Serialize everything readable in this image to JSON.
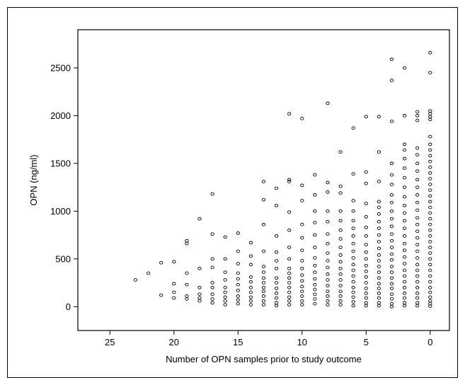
{
  "chart_data": {
    "type": "scatter",
    "title": "",
    "xlabel": "Number of OPN samples prior to study outcome",
    "ylabel": "OPN (ng/ml)",
    "xlim": [
      27.5,
      -1.5
    ],
    "ylim": [
      -250,
      2900
    ],
    "x_reversed": true,
    "grid": false,
    "legend": "none",
    "marker": "open-circle",
    "color": "#000000",
    "x_ticks": [
      {
        "value": 25,
        "label": "25"
      },
      {
        "value": 20,
        "label": "20"
      },
      {
        "value": 15,
        "label": "15"
      },
      {
        "value": 10,
        "label": "10"
      },
      {
        "value": 5,
        "label": "5"
      },
      {
        "value": 0,
        "label": "0"
      }
    ],
    "y_ticks": [
      {
        "value": 0,
        "label": "0"
      },
      {
        "value": 500,
        "label": "500"
      },
      {
        "value": 1000,
        "label": "1000"
      },
      {
        "value": 1500,
        "label": "1500"
      },
      {
        "value": 2000,
        "label": "2000"
      },
      {
        "value": 2500,
        "label": "2500"
      }
    ],
    "points": [
      [
        23,
        280
      ],
      [
        22,
        350
      ],
      [
        21,
        460
      ],
      [
        21,
        120
      ],
      [
        20,
        470
      ],
      [
        20,
        240
      ],
      [
        20,
        150
      ],
      [
        20,
        90
      ],
      [
        19,
        690
      ],
      [
        19,
        660
      ],
      [
        19,
        350
      ],
      [
        19,
        230
      ],
      [
        19,
        110
      ],
      [
        19,
        80
      ],
      [
        18,
        920
      ],
      [
        18,
        400
      ],
      [
        18,
        200
      ],
      [
        18,
        130
      ],
      [
        18,
        90
      ],
      [
        18,
        60
      ],
      [
        17,
        1180
      ],
      [
        17,
        760
      ],
      [
        17,
        500
      ],
      [
        17,
        410
      ],
      [
        17,
        250
      ],
      [
        17,
        200
      ],
      [
        17,
        130
      ],
      [
        17,
        80
      ],
      [
        17,
        40
      ],
      [
        16,
        730
      ],
      [
        16,
        500
      ],
      [
        16,
        360
      ],
      [
        16,
        280
      ],
      [
        16,
        200
      ],
      [
        16,
        150
      ],
      [
        16,
        100
      ],
      [
        16,
        60
      ],
      [
        16,
        20
      ],
      [
        15,
        770
      ],
      [
        15,
        580
      ],
      [
        15,
        450
      ],
      [
        15,
        350
      ],
      [
        15,
        290
      ],
      [
        15,
        230
      ],
      [
        15,
        170
      ],
      [
        15,
        110
      ],
      [
        15,
        70
      ],
      [
        15,
        30
      ],
      [
        14,
        670
      ],
      [
        14,
        530
      ],
      [
        14,
        440
      ],
      [
        14,
        310
      ],
      [
        14,
        260
      ],
      [
        14,
        200
      ],
      [
        14,
        150
      ],
      [
        14,
        100
      ],
      [
        14,
        60
      ],
      [
        14,
        20
      ],
      [
        13,
        1310
      ],
      [
        13,
        1120
      ],
      [
        13,
        860
      ],
      [
        13,
        580
      ],
      [
        13,
        420
      ],
      [
        13,
        360
      ],
      [
        13,
        300
      ],
      [
        13,
        250
      ],
      [
        13,
        200
      ],
      [
        13,
        160
      ],
      [
        13,
        110
      ],
      [
        13,
        60
      ],
      [
        13,
        20
      ],
      [
        12,
        1240
      ],
      [
        12,
        1060
      ],
      [
        12,
        740
      ],
      [
        12,
        570
      ],
      [
        12,
        480
      ],
      [
        12,
        400
      ],
      [
        12,
        300
      ],
      [
        12,
        250
      ],
      [
        12,
        190
      ],
      [
        12,
        140
      ],
      [
        12,
        90
      ],
      [
        12,
        40
      ],
      [
        12,
        10
      ],
      [
        11,
        2020
      ],
      [
        11,
        1330
      ],
      [
        11,
        1310
      ],
      [
        11,
        990
      ],
      [
        11,
        800
      ],
      [
        11,
        620
      ],
      [
        11,
        500
      ],
      [
        11,
        400
      ],
      [
        11,
        350
      ],
      [
        11,
        300
      ],
      [
        11,
        250
      ],
      [
        11,
        200
      ],
      [
        11,
        150
      ],
      [
        11,
        100
      ],
      [
        11,
        60
      ],
      [
        11,
        20
      ],
      [
        10,
        1970
      ],
      [
        10,
        1270
      ],
      [
        10,
        1110
      ],
      [
        10,
        860
      ],
      [
        10,
        720
      ],
      [
        10,
        590
      ],
      [
        10,
        480
      ],
      [
        10,
        400
      ],
      [
        10,
        330
      ],
      [
        10,
        270
      ],
      [
        10,
        210
      ],
      [
        10,
        160
      ],
      [
        10,
        110
      ],
      [
        10,
        60
      ],
      [
        10,
        20
      ],
      [
        9,
        1380
      ],
      [
        9,
        1170
      ],
      [
        9,
        1000
      ],
      [
        9,
        880
      ],
      [
        9,
        750
      ],
      [
        9,
        620
      ],
      [
        9,
        510
      ],
      [
        9,
        430
      ],
      [
        9,
        360
      ],
      [
        9,
        290
      ],
      [
        9,
        230
      ],
      [
        9,
        180
      ],
      [
        9,
        130
      ],
      [
        9,
        80
      ],
      [
        9,
        30
      ],
      [
        8,
        2130
      ],
      [
        8,
        1300
      ],
      [
        8,
        1200
      ],
      [
        8,
        1000
      ],
      [
        8,
        890
      ],
      [
        8,
        760
      ],
      [
        8,
        660
      ],
      [
        8,
        560
      ],
      [
        8,
        480
      ],
      [
        8,
        410
      ],
      [
        8,
        340
      ],
      [
        8,
        280
      ],
      [
        8,
        220
      ],
      [
        8,
        160
      ],
      [
        8,
        110
      ],
      [
        8,
        60
      ],
      [
        8,
        20
      ],
      [
        7,
        1620
      ],
      [
        7,
        1260
      ],
      [
        7,
        1190
      ],
      [
        7,
        1000
      ],
      [
        7,
        900
      ],
      [
        7,
        800
      ],
      [
        7,
        710
      ],
      [
        7,
        620
      ],
      [
        7,
        540
      ],
      [
        7,
        470
      ],
      [
        7,
        400
      ],
      [
        7,
        340
      ],
      [
        7,
        280
      ],
      [
        7,
        220
      ],
      [
        7,
        160
      ],
      [
        7,
        110
      ],
      [
        7,
        60
      ],
      [
        7,
        20
      ],
      [
        6,
        1870
      ],
      [
        6,
        1390
      ],
      [
        6,
        1110
      ],
      [
        6,
        1000
      ],
      [
        6,
        900
      ],
      [
        6,
        820
      ],
      [
        6,
        740
      ],
      [
        6,
        660
      ],
      [
        6,
        580
      ],
      [
        6,
        510
      ],
      [
        6,
        440
      ],
      [
        6,
        380
      ],
      [
        6,
        320
      ],
      [
        6,
        260
      ],
      [
        6,
        200
      ],
      [
        6,
        150
      ],
      [
        6,
        100
      ],
      [
        6,
        50
      ],
      [
        6,
        10
      ],
      [
        5,
        1990
      ],
      [
        5,
        1410
      ],
      [
        5,
        1290
      ],
      [
        5,
        1080
      ],
      [
        5,
        940
      ],
      [
        5,
        830
      ],
      [
        5,
        740
      ],
      [
        5,
        650
      ],
      [
        5,
        570
      ],
      [
        5,
        500
      ],
      [
        5,
        430
      ],
      [
        5,
        370
      ],
      [
        5,
        310
      ],
      [
        5,
        250
      ],
      [
        5,
        190
      ],
      [
        5,
        140
      ],
      [
        5,
        90
      ],
      [
        5,
        40
      ],
      [
        5,
        10
      ],
      [
        4,
        1990
      ],
      [
        4,
        1620
      ],
      [
        4,
        1310
      ],
      [
        4,
        1100
      ],
      [
        4,
        1040
      ],
      [
        4,
        970
      ],
      [
        4,
        890
      ],
      [
        4,
        820
      ],
      [
        4,
        750
      ],
      [
        4,
        680
      ],
      [
        4,
        610
      ],
      [
        4,
        540
      ],
      [
        4,
        480
      ],
      [
        4,
        420
      ],
      [
        4,
        360
      ],
      [
        4,
        300
      ],
      [
        4,
        240
      ],
      [
        4,
        190
      ],
      [
        4,
        140
      ],
      [
        4,
        90
      ],
      [
        4,
        40
      ],
      [
        4,
        10
      ],
      [
        3,
        2590
      ],
      [
        3,
        2370
      ],
      [
        3,
        1940
      ],
      [
        3,
        1500
      ],
      [
        3,
        1380
      ],
      [
        3,
        1280
      ],
      [
        3,
        1170
      ],
      [
        3,
        1090
      ],
      [
        3,
        1000
      ],
      [
        3,
        920
      ],
      [
        3,
        840
      ],
      [
        3,
        760
      ],
      [
        3,
        690
      ],
      [
        3,
        620
      ],
      [
        3,
        550
      ],
      [
        3,
        490
      ],
      [
        3,
        420
      ],
      [
        3,
        360
      ],
      [
        3,
        300
      ],
      [
        3,
        240
      ],
      [
        3,
        190
      ],
      [
        3,
        130
      ],
      [
        3,
        80
      ],
      [
        3,
        30
      ],
      [
        3,
        0
      ],
      [
        2,
        2500
      ],
      [
        2,
        2000
      ],
      [
        2,
        1700
      ],
      [
        2,
        1640
      ],
      [
        2,
        1550
      ],
      [
        2,
        1450
      ],
      [
        2,
        1350
      ],
      [
        2,
        1250
      ],
      [
        2,
        1150
      ],
      [
        2,
        1060
      ],
      [
        2,
        980
      ],
      [
        2,
        900
      ],
      [
        2,
        820
      ],
      [
        2,
        740
      ],
      [
        2,
        660
      ],
      [
        2,
        590
      ],
      [
        2,
        520
      ],
      [
        2,
        450
      ],
      [
        2,
        380
      ],
      [
        2,
        320
      ],
      [
        2,
        260
      ],
      [
        2,
        200
      ],
      [
        2,
        140
      ],
      [
        2,
        90
      ],
      [
        2,
        40
      ],
      [
        2,
        10
      ],
      [
        1,
        2040
      ],
      [
        1,
        2000
      ],
      [
        1,
        1950
      ],
      [
        1,
        1660
      ],
      [
        1,
        1590
      ],
      [
        1,
        1500
      ],
      [
        1,
        1420
      ],
      [
        1,
        1330
      ],
      [
        1,
        1250
      ],
      [
        1,
        1170
      ],
      [
        1,
        1090
      ],
      [
        1,
        1010
      ],
      [
        1,
        930
      ],
      [
        1,
        860
      ],
      [
        1,
        790
      ],
      [
        1,
        720
      ],
      [
        1,
        650
      ],
      [
        1,
        580
      ],
      [
        1,
        510
      ],
      [
        1,
        440
      ],
      [
        1,
        380
      ],
      [
        1,
        320
      ],
      [
        1,
        260
      ],
      [
        1,
        200
      ],
      [
        1,
        140
      ],
      [
        1,
        90
      ],
      [
        1,
        40
      ],
      [
        1,
        10
      ],
      [
        0,
        2660
      ],
      [
        0,
        2450
      ],
      [
        0,
        2050
      ],
      [
        0,
        2020
      ],
      [
        0,
        1990
      ],
      [
        0,
        1960
      ],
      [
        0,
        1780
      ],
      [
        0,
        1700
      ],
      [
        0,
        1640
      ],
      [
        0,
        1580
      ],
      [
        0,
        1520
      ],
      [
        0,
        1460
      ],
      [
        0,
        1400
      ],
      [
        0,
        1340
      ],
      [
        0,
        1280
      ],
      [
        0,
        1220
      ],
      [
        0,
        1160
      ],
      [
        0,
        1100
      ],
      [
        0,
        1040
      ],
      [
        0,
        980
      ],
      [
        0,
        920
      ],
      [
        0,
        860
      ],
      [
        0,
        800
      ],
      [
        0,
        740
      ],
      [
        0,
        680
      ],
      [
        0,
        620
      ],
      [
        0,
        560
      ],
      [
        0,
        500
      ],
      [
        0,
        440
      ],
      [
        0,
        380
      ],
      [
        0,
        320
      ],
      [
        0,
        260
      ],
      [
        0,
        200
      ],
      [
        0,
        150
      ],
      [
        0,
        100
      ],
      [
        0,
        60
      ],
      [
        0,
        30
      ],
      [
        0,
        5
      ]
    ]
  }
}
